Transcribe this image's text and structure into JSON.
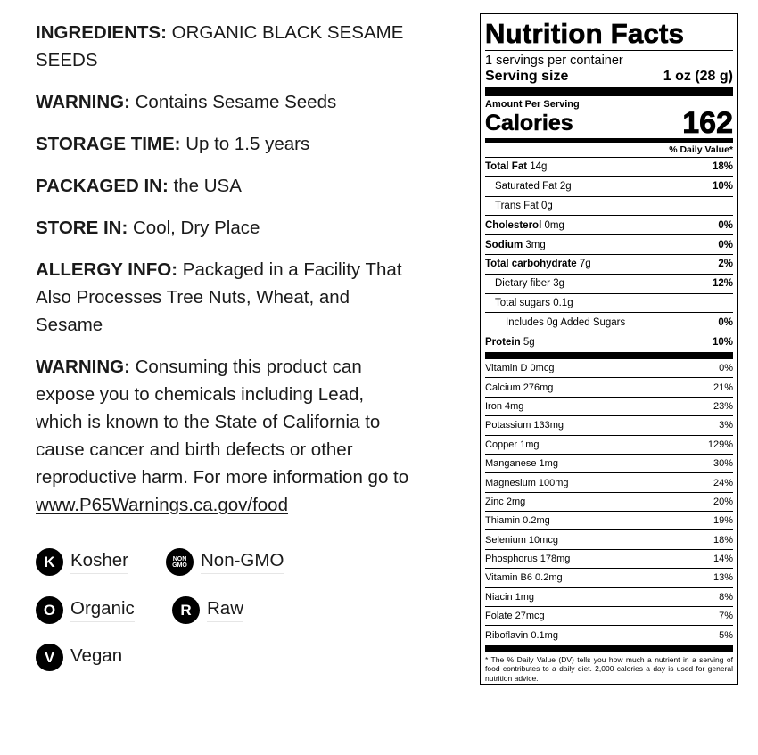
{
  "info": [
    {
      "label": "INGREDIENTS:",
      "text": "ORGANIC BLACK SESAME SEEDS"
    },
    {
      "label": "WARNING:",
      "text": "Contains Sesame Seeds"
    },
    {
      "label": "STORAGE TIME:",
      "text": "Up to 1.5 years"
    },
    {
      "label": "PACKAGED IN:",
      "text": "the USA"
    },
    {
      "label": "STORE IN:",
      "text": "Cool, Dry Place"
    },
    {
      "label": "ALLERGY INFO:",
      "text": "Packaged in a Facility That Also Processes Tree Nuts, Wheat, and Sesame"
    }
  ],
  "prop65": {
    "label": "WARNING:",
    "text": "Consuming this product can expose you to chemicals including Lead, which is known to the State of California to cause cancer and birth defects or other reproductive harm. For more information go to",
    "link": "www.P65Warnings.ca.gov/food"
  },
  "badges": [
    {
      "icon": "K",
      "label": "Kosher"
    },
    {
      "icon": "NON GMO",
      "label": "Non-GMO"
    },
    {
      "icon": "O",
      "label": "Organic"
    },
    {
      "icon": "R",
      "label": "Raw"
    },
    {
      "icon": "V",
      "label": "Vegan"
    }
  ],
  "nutrition": {
    "title": "Nutrition Facts",
    "servings": "1 servings per container",
    "serving_size_label": "Serving size",
    "serving_size": "1 oz (28 g)",
    "amount_per_serving": "Amount Per Serving",
    "calories_label": "Calories",
    "calories": "162",
    "dv_header": "% Daily Value*",
    "rows": [
      {
        "name": "Total Fat",
        "amount": "14g",
        "dv": "18%"
      },
      {
        "name": "Saturated Fat",
        "amount": "2g",
        "dv": "10%"
      },
      {
        "name": "Trans Fat",
        "amount": "0g",
        "dv": ""
      },
      {
        "name": "Cholesterol",
        "amount": "0mg",
        "dv": "0%"
      },
      {
        "name": "Sodium",
        "amount": "3mg",
        "dv": "0%"
      },
      {
        "name": "Total carbohydrate",
        "amount": "7g",
        "dv": "2%"
      },
      {
        "name": "Dietary fiber",
        "amount": "3g",
        "dv": "12%"
      },
      {
        "name": "Total sugars",
        "amount": "0.1g",
        "dv": ""
      },
      {
        "name": "Includes 0g Added Sugars",
        "amount": "",
        "dv": "0%"
      },
      {
        "name": "Protein",
        "amount": "5g",
        "dv": "10%"
      }
    ],
    "vitamins": [
      {
        "name": "Vitamin D 0mcg",
        "dv": "0%"
      },
      {
        "name": "Calcium 276mg",
        "dv": "21%"
      },
      {
        "name": "Iron 4mg",
        "dv": "23%"
      },
      {
        "name": "Potassium 133mg",
        "dv": "3%"
      },
      {
        "name": "Copper 1mg",
        "dv": "129%"
      },
      {
        "name": "Manganese 1mg",
        "dv": "30%"
      },
      {
        "name": "Magnesium 100mg",
        "dv": "24%"
      },
      {
        "name": "Zinc 2mg",
        "dv": "20%"
      },
      {
        "name": "Thiamin 0.2mg",
        "dv": "19%"
      },
      {
        "name": "Selenium 10mcg",
        "dv": "18%"
      },
      {
        "name": "Phosphorus 178mg",
        "dv": "14%"
      },
      {
        "name": "Vitamin B6 0.2mg",
        "dv": "13%"
      },
      {
        "name": "Niacin 1mg",
        "dv": "8%"
      },
      {
        "name": "Folate 27mcg",
        "dv": "7%"
      },
      {
        "name": "Riboflavin 0.1mg",
        "dv": "5%"
      }
    ],
    "footnote": "* The % Daily Value (DV) tells you how much a nutrient in a serving of food contributes to a daily diet. 2,000 calories a day is used for general nutrition advice."
  }
}
